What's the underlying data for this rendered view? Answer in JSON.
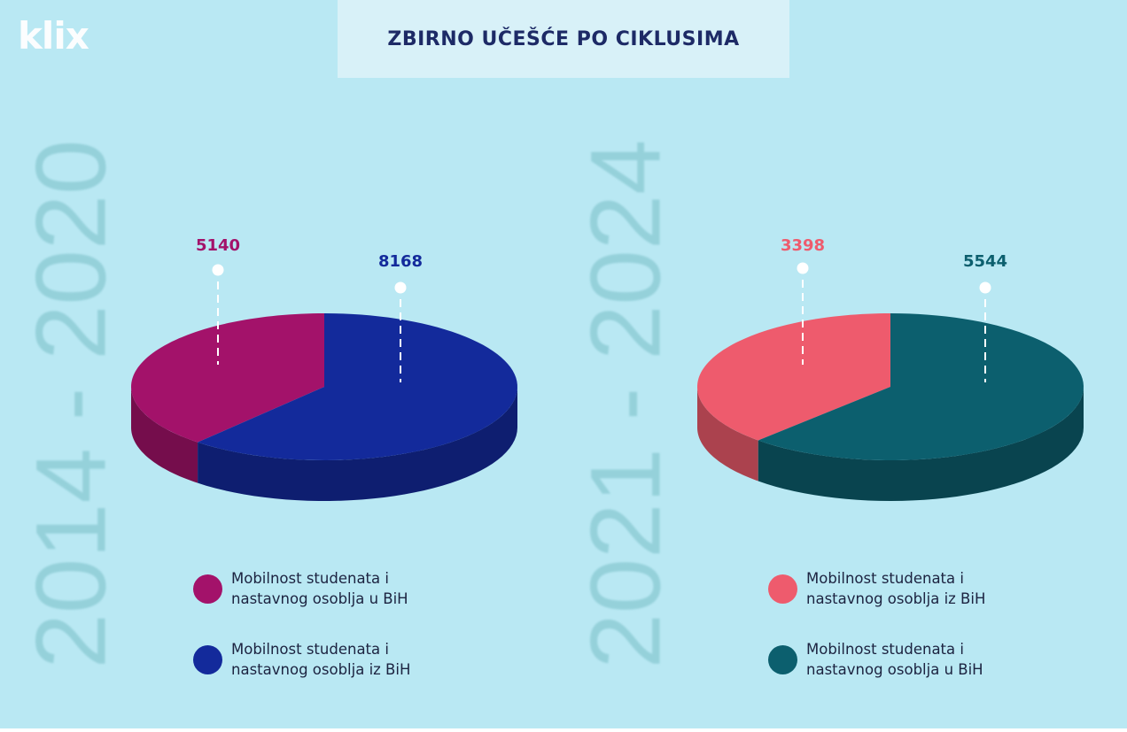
{
  "logo": "klix",
  "title": "ZBIRNO UČEŠĆE PO CIKLUSIMA",
  "colors": {
    "background": "#b9e8f3",
    "magenta": "#a3126a",
    "navy": "#132a9b",
    "coral": "#ee5b6d",
    "teal": "#0c5f6e"
  },
  "chart_data": [
    {
      "type": "pie",
      "title": "2014 - 2020",
      "categories": [
        "Mobilnost studenata i nastavnog osoblja u BiH",
        "Mobilnost studenata i nastavnog osoblja iz BiH"
      ],
      "values": [
        5140,
        8168
      ],
      "value_labels": [
        "5140",
        "8168"
      ],
      "colors": [
        "#a3126a",
        "#132a9b"
      ],
      "legend": [
        "Mobilnost studenata i nastavnog osoblja u BiH",
        "Mobilnost studenata i nastavnog osoblja iz BiH"
      ],
      "legend_placement": "bottom"
    },
    {
      "type": "pie",
      "title": "2021 - 2024",
      "categories": [
        "Mobilnost studenata i nastavnog osoblja iz BiH",
        "Mobilnost studenata i nastavnog osoblja u BiH"
      ],
      "values": [
        3398,
        5544
      ],
      "value_labels": [
        "3398",
        "5544"
      ],
      "colors": [
        "#ee5b6d",
        "#0c5f6e"
      ],
      "legend": [
        "Mobilnost studenata i nastavnog osoblja iz BiH",
        "Mobilnost studenata i nastavnog osoblja u BiH"
      ],
      "legend_placement": "bottom"
    }
  ]
}
